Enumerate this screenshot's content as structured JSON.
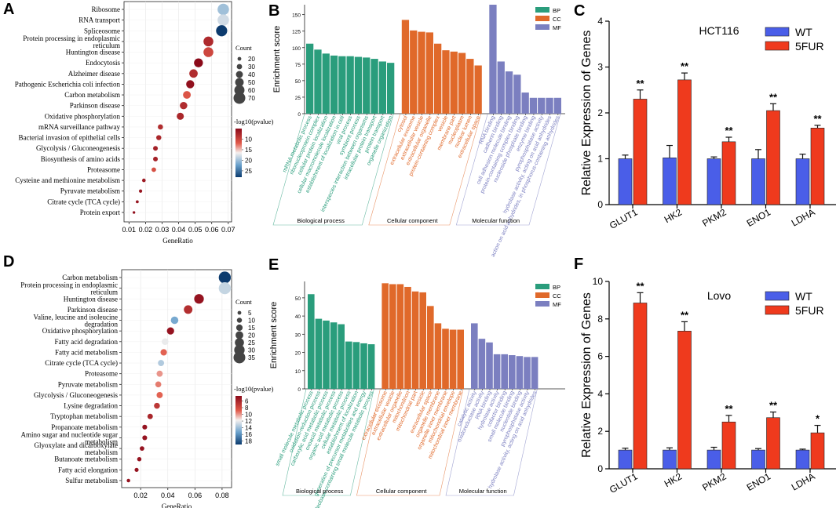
{
  "colors": {
    "bp": "#2a9d7c",
    "cc": "#e0692a",
    "mf": "#7b7fc0",
    "wt": "#4a5ee8",
    "fur": "#ef3a1d"
  },
  "chart_data": [
    {
      "id": "A",
      "type": "scatter",
      "panel_label": "A",
      "xlabel": "GeneRatio",
      "xlim": [
        0.007,
        0.072
      ],
      "xticks": [
        0.01,
        0.02,
        0.03,
        0.04,
        0.05,
        0.06,
        0.07
      ],
      "xtick_labels": [
        "0.01",
        "0.02",
        "0.03",
        "0.04",
        "0.05",
        "0.06",
        "0.07"
      ],
      "size_legend": {
        "title": "Count",
        "values": [
          20,
          30,
          40,
          50,
          60,
          70
        ]
      },
      "color_legend": {
        "title": "-log10(pvalue)",
        "ticks": [
          10,
          15,
          20,
          25
        ],
        "min": 5,
        "max": 28
      },
      "points": [
        {
          "term": "Ribosome",
          "x": 0.067,
          "count": 68,
          "logp": 20
        },
        {
          "term": "RNA transport",
          "x": 0.067,
          "count": 68,
          "logp": 18
        },
        {
          "term": "Spliceosome",
          "x": 0.066,
          "count": 66,
          "logp": 28
        },
        {
          "term": "Protein processing in endoplasmic reticulum",
          "x": 0.058,
          "count": 58,
          "logp": 7.8
        },
        {
          "term": "Huntington disease",
          "x": 0.058,
          "count": 58,
          "logp": 10.3
        },
        {
          "term": "Endocytosis",
          "x": 0.052,
          "count": 52,
          "logp": 5
        },
        {
          "term": "Alzheimer disease",
          "x": 0.049,
          "count": 49,
          "logp": 8
        },
        {
          "term": "Pathogenic Escherichia coli infection",
          "x": 0.047,
          "count": 47,
          "logp": 5.5
        },
        {
          "term": "Carbon metabolism",
          "x": 0.045,
          "count": 45,
          "logp": 11.5
        },
        {
          "term": "Parkinson disease",
          "x": 0.043,
          "count": 43,
          "logp": 8
        },
        {
          "term": "Oxidative phosphorylation",
          "x": 0.041,
          "count": 41,
          "logp": 7.5
        },
        {
          "term": "mRNA surveillance pathway",
          "x": 0.029,
          "count": 29,
          "logp": 8
        },
        {
          "term": "Bacterial invasion of epithelial cells",
          "x": 0.028,
          "count": 28,
          "logp": 7.5
        },
        {
          "term": "Glycolysis / Gluconeogenesis",
          "x": 0.026,
          "count": 26,
          "logp": 7
        },
        {
          "term": "Biosynthesis of amino acids",
          "x": 0.026,
          "count": 26,
          "logp": 7
        },
        {
          "term": "Proteasome",
          "x": 0.025,
          "count": 25,
          "logp": 11
        },
        {
          "term": "Cysteine and methionine metabolism",
          "x": 0.019,
          "count": 19,
          "logp": 6.5
        },
        {
          "term": "Pyruvate metabolism",
          "x": 0.017,
          "count": 17,
          "logp": 6
        },
        {
          "term": "Citrate cycle (TCA cycle)",
          "x": 0.015,
          "count": 15,
          "logp": 6
        },
        {
          "term": "Protein export",
          "x": 0.013,
          "count": 13,
          "logp": 5.5
        }
      ]
    },
    {
      "id": "B",
      "type": "bar",
      "panel_label": "B",
      "ylabel": "Enrichment score",
      "ylim": [
        0,
        165
      ],
      "yticks": [
        0,
        25,
        50,
        75,
        100,
        125,
        150
      ],
      "legend": [
        "BP",
        "CC",
        "MF"
      ],
      "groups": [
        {
          "name": "BP",
          "label": "Biological process",
          "values": [
            106,
            97,
            91,
            88,
            87,
            87,
            86,
            85,
            83,
            79,
            77
          ],
          "categories": [
            "mRNA metabolic process",
            "ribonucleoprotein complex",
            "cellular protein localization",
            "cellular macromolecule localization",
            "establishment of localization in cell",
            "viral process",
            "symbiont process",
            "interspecies interaction between organisms",
            "intracellular protein transport",
            "protein transport",
            "organelle organization"
          ]
        },
        {
          "name": "CC",
          "label": "Cellular component",
          "values": [
            142,
            126,
            124,
            123,
            106,
            96,
            94,
            92,
            83,
            73
          ],
          "categories": [
            "cytosol",
            "extracellular exosome",
            "extracellular vesicle",
            "extracellular organelle",
            "protein-containing complex",
            "vesicle",
            "membrane part",
            "nucleoplasm",
            "nuclear lumen",
            "extracellular space"
          ]
        },
        {
          "name": "MF",
          "label": "Molecular function",
          "values": [
            165,
            79,
            64,
            59,
            32,
            24,
            24,
            24,
            24
          ],
          "categories": [
            "RNA binding",
            "cadherin binding",
            "cell adhesion molecule binding",
            "protein-containing complex binding",
            "nucleoside phosphate binding",
            "enzyme binding",
            "pyrophosphatase activity",
            "hydrolase activity, acting on acid anhydrides",
            "action on acid anhydrides, in phosphorus-containing anhydrides"
          ]
        }
      ]
    },
    {
      "id": "C",
      "type": "bar",
      "panel_label": "C",
      "title": "HCT116",
      "ylabel": "Relative Expression of Genes",
      "ylim": [
        0,
        4
      ],
      "yticks": [
        0,
        1,
        2,
        3,
        4
      ],
      "categories": [
        "GLUT1",
        "HK2",
        "PKM2",
        "ENO1",
        "LDHA"
      ],
      "series": [
        {
          "name": "WT",
          "values": [
            1.0,
            1.02,
            1.0,
            1.0,
            1.0
          ],
          "errors": [
            0.08,
            0.27,
            0.04,
            0.2,
            0.1
          ]
        },
        {
          "name": "5FUR",
          "values": [
            2.3,
            2.72,
            1.37,
            2.05,
            1.67
          ],
          "errors": [
            0.2,
            0.15,
            0.1,
            0.15,
            0.06
          ]
        }
      ],
      "significance": [
        "**",
        "**",
        "**",
        "**",
        "**"
      ]
    },
    {
      "id": "D",
      "type": "scatter",
      "panel_label": "D",
      "xlabel": "GeneRatio",
      "xlim": [
        0.006,
        0.087
      ],
      "xticks": [
        0.02,
        0.04,
        0.06,
        0.08
      ],
      "xtick_labels": [
        "0.02",
        "0.04",
        "0.06",
        "0.08"
      ],
      "size_legend": {
        "title": "Count",
        "values": [
          5,
          10,
          15,
          20,
          25,
          30,
          35
        ]
      },
      "color_legend": {
        "title": "-log10(pvalue)",
        "ticks": [
          6,
          8,
          10,
          12,
          14,
          16,
          18
        ],
        "min": 4.5,
        "max": 19
      },
      "points": [
        {
          "term": "Carbon metabolism",
          "x": 0.082,
          "count": 36,
          "logp": 19
        },
        {
          "term": "Protein processing in endoplasmic reticulum",
          "x": 0.082,
          "count": 36,
          "logp": 13
        },
        {
          "term": "Huntington disease",
          "x": 0.063,
          "count": 27,
          "logp": 5
        },
        {
          "term": "Parkinson disease",
          "x": 0.055,
          "count": 23,
          "logp": 6.5
        },
        {
          "term": "Valine, leucine and isoleucine degradation",
          "x": 0.045,
          "count": 19,
          "logp": 15
        },
        {
          "term": "Oxidative phosphorylation",
          "x": 0.042,
          "count": 18,
          "logp": 5
        },
        {
          "term": "Fatty acid degradation",
          "x": 0.038,
          "count": 16,
          "logp": 12
        },
        {
          "term": "Fatty acid metabolism",
          "x": 0.037,
          "count": 15,
          "logp": 9
        },
        {
          "term": "Citrate cycle (TCA cycle)",
          "x": 0.035,
          "count": 14,
          "logp": 13.5
        },
        {
          "term": "Proteasome",
          "x": 0.034,
          "count": 14,
          "logp": 10
        },
        {
          "term": "Pyruvate metabolism",
          "x": 0.033,
          "count": 13,
          "logp": 9.5
        },
        {
          "term": "Glycolysis / Gluconeogenesis",
          "x": 0.034,
          "count": 14,
          "logp": 9
        },
        {
          "term": "Lysine degradation",
          "x": 0.032,
          "count": 13,
          "logp": 7
        },
        {
          "term": "Tryptophan metabolism",
          "x": 0.027,
          "count": 11,
          "logp": 6
        },
        {
          "term": "Propanoate metabolism",
          "x": 0.023,
          "count": 9,
          "logp": 5
        },
        {
          "term": "Amino sugar and nucleotide sugar metabolism",
          "x": 0.023,
          "count": 9,
          "logp": 5
        },
        {
          "term": "Glyoxylate and dicarboxylate metabolism",
          "x": 0.021,
          "count": 8,
          "logp": 5
        },
        {
          "term": "Butanoate metabolism",
          "x": 0.019,
          "count": 7,
          "logp": 5
        },
        {
          "term": "Fatty acid elongation",
          "x": 0.017,
          "count": 6,
          "logp": 5
        },
        {
          "term": "Sulfur metabolism",
          "x": 0.011,
          "count": 4,
          "logp": 5
        }
      ]
    },
    {
      "id": "E",
      "type": "bar",
      "panel_label": "E",
      "ylabel": "Enrichment score",
      "ylim": [
        0,
        59
      ],
      "yticks": [
        0,
        10,
        20,
        30,
        40,
        50
      ],
      "legend": [
        "BP",
        "CC",
        "MF"
      ],
      "groups": [
        {
          "name": "BP",
          "label": "Biological process",
          "values": [
            52,
            38.5,
            37.5,
            36.5,
            35.5,
            26,
            25.7,
            25,
            24.5
          ],
          "categories": [
            "small molecule metabolic process",
            "oxidation-reduction process",
            "carboxylic acid metabolic process",
            "oxoacid metabolic process",
            "organic acid metabolic process",
            "cellular metabolic process",
            "establishment of localization",
            "generation of precursor metabolites and energy",
            "nucleobase-containing small molecule metabolic process"
          ]
        },
        {
          "name": "CC",
          "label": "Cellular component",
          "values": [
            58,
            57.5,
            57.5,
            56,
            53.5,
            53,
            45.5,
            36,
            33,
            32.5,
            32.5
          ],
          "categories": [
            "extracellular exosome",
            "extracellular vesicle",
            "extracellular organelle",
            "mitochondrion",
            "mitochondrial part",
            "vesicle",
            "extracellular space",
            "organelle membrane",
            "organelle inner membrane",
            "mitochondrial envelope",
            "mitochondrial inner membrane"
          ]
        },
        {
          "name": "MF",
          "label": "Molecular function",
          "values": [
            36,
            27.5,
            25.5,
            19,
            19,
            18.5,
            18,
            17.5,
            17.5
          ],
          "categories": [
            "catalytic activity",
            "oxidoreductase activity",
            "RNA binding",
            "hydrolase activity",
            "cofactor binding",
            "small molecule binding",
            "nucleotide binding",
            "pyrophosphatase activity",
            "hydrolase activity, acting on acid anhydrides"
          ]
        }
      ]
    },
    {
      "id": "F",
      "type": "bar",
      "panel_label": "F",
      "title": "Lovo",
      "ylabel": "Relative Expression of Genes",
      "ylim": [
        0,
        10
      ],
      "yticks": [
        0,
        2,
        4,
        6,
        8,
        10
      ],
      "categories": [
        "GLUT1",
        "HK2",
        "PKM2",
        "ENO1",
        "LDHA"
      ],
      "series": [
        {
          "name": "WT",
          "values": [
            1.0,
            1.0,
            1.0,
            1.0,
            1.0
          ],
          "errors": [
            0.1,
            0.12,
            0.15,
            0.08,
            0.05
          ]
        },
        {
          "name": "5FUR",
          "values": [
            8.85,
            7.35,
            2.5,
            2.73,
            1.92
          ],
          "errors": [
            0.55,
            0.5,
            0.35,
            0.3,
            0.4
          ]
        }
      ],
      "significance": [
        "**",
        "**",
        "**",
        "**",
        "*"
      ]
    }
  ]
}
